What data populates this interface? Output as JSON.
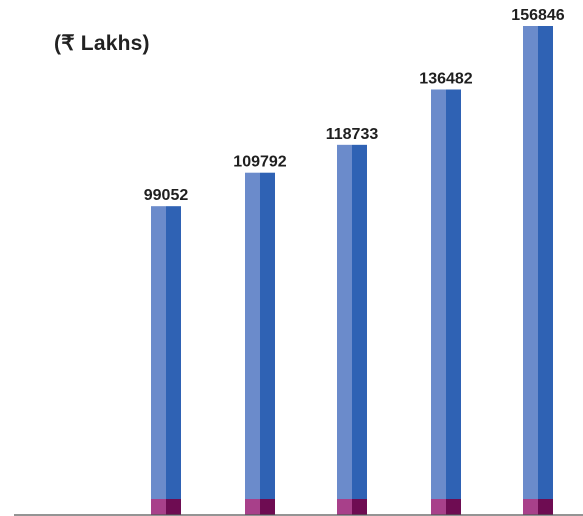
{
  "chart_data": {
    "type": "bar",
    "unit_label": "(₹ Lakhs)",
    "categories": [
      "",
      "",
      "",
      "",
      ""
    ],
    "values": [
      99052,
      109792,
      118733,
      136482,
      156846
    ],
    "value_labels": [
      "99052",
      "109792",
      "118733",
      "136482",
      "156846"
    ],
    "ylim": [
      0,
      160000
    ],
    "grid": false,
    "colors": {
      "bar_left": "#6b8bcb",
      "bar_right": "#2f62b4",
      "base_left": "#a8408a",
      "base_right": "#6e0c52",
      "axis": "#555555"
    }
  }
}
